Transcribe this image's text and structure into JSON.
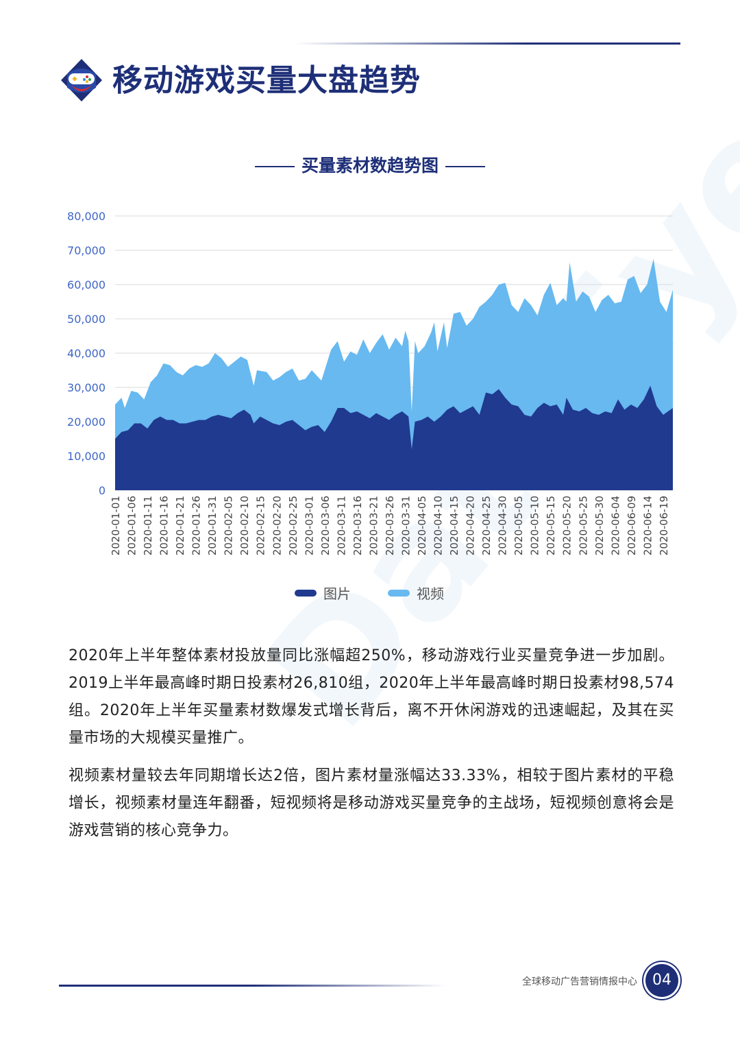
{
  "header": {
    "title": "移动游戏买量大盘趋势"
  },
  "chart_title": "买量素材数趋势图",
  "legend": [
    {
      "label": "图片",
      "color": "#1f3a8f"
    },
    {
      "label": "视频",
      "color": "#67b9f0"
    }
  ],
  "paragraphs": [
    "2020年上半年整体素材投放量同比涨幅超250%，移动游戏行业买量竞争进一步加剧。2019上半年最高峰时期日投素材26,810组，2020年上半年最高峰时期日投素材98,574组。2020年上半年买量素材数爆发式增长背后，离不开休闲游戏的迅速崛起，及其在买量市场的大规模买量推广。",
    "视频素材量较去年同期增长达2倍，图片素材量涨幅达33.33%，相较于图片素材的平稳增长，视频素材量连年翻番，短视频将是移动游戏买量竞争的主战场，短视频创意将会是游戏营销的核心竞争力。"
  ],
  "footer": {
    "org": "全球移动广告营销情报中心",
    "page": "04"
  },
  "watermark": "DataEye",
  "chart_data": {
    "type": "area",
    "stacked": false,
    "ylim": [
      0,
      80000
    ],
    "yticks": [
      0,
      10000,
      20000,
      30000,
      40000,
      50000,
      60000,
      70000,
      80000
    ],
    "ytick_labels": [
      "0",
      "10,000",
      "20,000",
      "30,000",
      "40,000",
      "50,000",
      "60,000",
      "70,000",
      "80,000"
    ],
    "grid": true,
    "legend_position": "bottom",
    "xtick_labels": [
      "2020-01-01",
      "2020-01-06",
      "2020-01-11",
      "2020-01-16",
      "2020-01-21",
      "2020-01-26",
      "2020-01-31",
      "2020-02-05",
      "2020-02-10",
      "2020-02-15",
      "2020-02-20",
      "2020-02-25",
      "2020-03-01",
      "2020-03-06",
      "2020-03-11",
      "2020-03-16",
      "2020-03-21",
      "2020-03-26",
      "2020-03-31",
      "2020-04-05",
      "2020-04-10",
      "2020-04-15",
      "2020-04-20",
      "2020-04-25",
      "2020-04-30",
      "2020-05-05",
      "2020-05-10",
      "2020-05-15",
      "2020-05-20",
      "2020-05-25",
      "2020-05-30",
      "2020-06-04",
      "2020-06-09",
      "2020-06-14",
      "2020-06-19"
    ],
    "series": [
      {
        "name": "视频",
        "color": "#67b9f0",
        "anchors": [
          [
            "2020-01-01",
            25000
          ],
          [
            "2020-01-03",
            27000
          ],
          [
            "2020-01-04",
            24000
          ],
          [
            "2020-01-06",
            29000
          ],
          [
            "2020-01-08",
            28500
          ],
          [
            "2020-01-10",
            26500
          ],
          [
            "2020-01-12",
            31500
          ],
          [
            "2020-01-14",
            33500
          ],
          [
            "2020-01-16",
            37000
          ],
          [
            "2020-01-18",
            36500
          ],
          [
            "2020-01-20",
            34500
          ],
          [
            "2020-01-22",
            33500
          ],
          [
            "2020-01-24",
            35500
          ],
          [
            "2020-01-26",
            36500
          ],
          [
            "2020-01-28",
            36000
          ],
          [
            "2020-01-30",
            37000
          ],
          [
            "2020-02-01",
            40000
          ],
          [
            "2020-02-03",
            38500
          ],
          [
            "2020-02-05",
            36000
          ],
          [
            "2020-02-07",
            37500
          ],
          [
            "2020-02-09",
            39000
          ],
          [
            "2020-02-11",
            38000
          ],
          [
            "2020-02-13",
            30500
          ],
          [
            "2020-02-14",
            35000
          ],
          [
            "2020-02-17",
            34500
          ],
          [
            "2020-02-19",
            32000
          ],
          [
            "2020-02-21",
            33000
          ],
          [
            "2020-02-23",
            34500
          ],
          [
            "2020-02-25",
            35500
          ],
          [
            "2020-02-27",
            32000
          ],
          [
            "2020-02-29",
            32500
          ],
          [
            "2020-03-02",
            35000
          ],
          [
            "2020-03-05",
            32000
          ],
          [
            "2020-03-08",
            41000
          ],
          [
            "2020-03-10",
            43500
          ],
          [
            "2020-03-12",
            37500
          ],
          [
            "2020-03-14",
            40500
          ],
          [
            "2020-03-16",
            39500
          ],
          [
            "2020-03-18",
            44000
          ],
          [
            "2020-03-20",
            40000
          ],
          [
            "2020-03-22",
            43000
          ],
          [
            "2020-03-24",
            45500
          ],
          [
            "2020-03-26",
            41000
          ],
          [
            "2020-03-28",
            44500
          ],
          [
            "2020-03-30",
            42000
          ],
          [
            "2020-03-31",
            46500
          ],
          [
            "2020-04-01",
            43500
          ],
          [
            "2020-04-02",
            23000
          ],
          [
            "2020-04-03",
            43500
          ],
          [
            "2020-04-04",
            40000
          ],
          [
            "2020-04-06",
            42000
          ],
          [
            "2020-04-08",
            46000
          ],
          [
            "2020-04-09",
            49000
          ],
          [
            "2020-04-10",
            40500
          ],
          [
            "2020-04-12",
            49000
          ],
          [
            "2020-04-13",
            41500
          ],
          [
            "2020-04-15",
            51500
          ],
          [
            "2020-04-17",
            52000
          ],
          [
            "2020-04-19",
            48000
          ],
          [
            "2020-04-21",
            50000
          ],
          [
            "2020-04-23",
            53500
          ],
          [
            "2020-04-25",
            55000
          ],
          [
            "2020-04-27",
            57000
          ],
          [
            "2020-04-29",
            60000
          ],
          [
            "2020-05-01",
            60500
          ],
          [
            "2020-05-03",
            54000
          ],
          [
            "2020-05-05",
            52000
          ],
          [
            "2020-05-07",
            56000
          ],
          [
            "2020-05-09",
            54000
          ],
          [
            "2020-05-11",
            51000
          ],
          [
            "2020-05-13",
            57000
          ],
          [
            "2020-05-15",
            60500
          ],
          [
            "2020-05-17",
            54000
          ],
          [
            "2020-05-19",
            56000
          ],
          [
            "2020-05-20",
            55000
          ],
          [
            "2020-05-21",
            66500
          ],
          [
            "2020-05-23",
            55000
          ],
          [
            "2020-05-25",
            58000
          ],
          [
            "2020-05-27",
            56500
          ],
          [
            "2020-05-29",
            52000
          ],
          [
            "2020-05-31",
            55500
          ],
          [
            "2020-06-02",
            57000
          ],
          [
            "2020-06-04",
            54500
          ],
          [
            "2020-06-06",
            55000
          ],
          [
            "2020-06-08",
            61500
          ],
          [
            "2020-06-10",
            62500
          ],
          [
            "2020-06-12",
            57500
          ],
          [
            "2020-06-14",
            60000
          ],
          [
            "2020-06-16",
            67500
          ],
          [
            "2020-06-18",
            55000
          ],
          [
            "2020-06-20",
            52000
          ],
          [
            "2020-06-22",
            58500
          ]
        ]
      },
      {
        "name": "图片",
        "color": "#1f3a8f",
        "anchors": [
          [
            "2020-01-01",
            15000
          ],
          [
            "2020-01-03",
            17000
          ],
          [
            "2020-01-05",
            17500
          ],
          [
            "2020-01-07",
            19500
          ],
          [
            "2020-01-09",
            19500
          ],
          [
            "2020-01-11",
            18000
          ],
          [
            "2020-01-13",
            20500
          ],
          [
            "2020-01-15",
            21500
          ],
          [
            "2020-01-17",
            20500
          ],
          [
            "2020-01-19",
            20500
          ],
          [
            "2020-01-21",
            19500
          ],
          [
            "2020-01-23",
            19500
          ],
          [
            "2020-01-25",
            20000
          ],
          [
            "2020-01-27",
            20500
          ],
          [
            "2020-01-29",
            20500
          ],
          [
            "2020-01-31",
            21500
          ],
          [
            "2020-02-02",
            22000
          ],
          [
            "2020-02-04",
            21500
          ],
          [
            "2020-02-06",
            21000
          ],
          [
            "2020-02-08",
            22500
          ],
          [
            "2020-02-10",
            23500
          ],
          [
            "2020-02-12",
            22000
          ],
          [
            "2020-02-13",
            19500
          ],
          [
            "2020-02-15",
            21500
          ],
          [
            "2020-02-17",
            20500
          ],
          [
            "2020-02-19",
            19500
          ],
          [
            "2020-02-21",
            19000
          ],
          [
            "2020-02-23",
            20000
          ],
          [
            "2020-02-25",
            20500
          ],
          [
            "2020-02-27",
            19000
          ],
          [
            "2020-02-29",
            17500
          ],
          [
            "2020-03-02",
            18500
          ],
          [
            "2020-03-04",
            19000
          ],
          [
            "2020-03-06",
            17000
          ],
          [
            "2020-03-08",
            20000
          ],
          [
            "2020-03-10",
            24000
          ],
          [
            "2020-03-12",
            24000
          ],
          [
            "2020-03-14",
            22500
          ],
          [
            "2020-03-16",
            23000
          ],
          [
            "2020-03-18",
            22000
          ],
          [
            "2020-03-20",
            21000
          ],
          [
            "2020-03-22",
            22500
          ],
          [
            "2020-03-24",
            21500
          ],
          [
            "2020-03-26",
            20500
          ],
          [
            "2020-03-28",
            22000
          ],
          [
            "2020-03-30",
            23000
          ],
          [
            "2020-04-01",
            21500
          ],
          [
            "2020-04-02",
            12000
          ],
          [
            "2020-04-03",
            20000
          ],
          [
            "2020-04-05",
            20500
          ],
          [
            "2020-04-07",
            21500
          ],
          [
            "2020-04-09",
            20000
          ],
          [
            "2020-04-11",
            21500
          ],
          [
            "2020-04-13",
            23500
          ],
          [
            "2020-04-15",
            24500
          ],
          [
            "2020-04-17",
            22500
          ],
          [
            "2020-04-19",
            23500
          ],
          [
            "2020-04-21",
            24500
          ],
          [
            "2020-04-23",
            22000
          ],
          [
            "2020-04-25",
            28500
          ],
          [
            "2020-04-27",
            28000
          ],
          [
            "2020-04-29",
            29500
          ],
          [
            "2020-05-01",
            27000
          ],
          [
            "2020-05-03",
            25000
          ],
          [
            "2020-05-05",
            24500
          ],
          [
            "2020-05-07",
            22000
          ],
          [
            "2020-05-09",
            21500
          ],
          [
            "2020-05-11",
            24000
          ],
          [
            "2020-05-13",
            25500
          ],
          [
            "2020-05-15",
            24500
          ],
          [
            "2020-05-17",
            25000
          ],
          [
            "2020-05-19",
            22000
          ],
          [
            "2020-05-20",
            27000
          ],
          [
            "2020-05-22",
            23500
          ],
          [
            "2020-05-24",
            23000
          ],
          [
            "2020-05-26",
            24000
          ],
          [
            "2020-05-28",
            22500
          ],
          [
            "2020-05-30",
            22000
          ],
          [
            "2020-06-01",
            23000
          ],
          [
            "2020-06-03",
            22500
          ],
          [
            "2020-06-05",
            26500
          ],
          [
            "2020-06-07",
            23500
          ],
          [
            "2020-06-09",
            25000
          ],
          [
            "2020-06-11",
            24000
          ],
          [
            "2020-06-13",
            26500
          ],
          [
            "2020-06-15",
            30500
          ],
          [
            "2020-06-17",
            24500
          ],
          [
            "2020-06-19",
            22000
          ],
          [
            "2020-06-22",
            24000
          ]
        ]
      }
    ]
  }
}
